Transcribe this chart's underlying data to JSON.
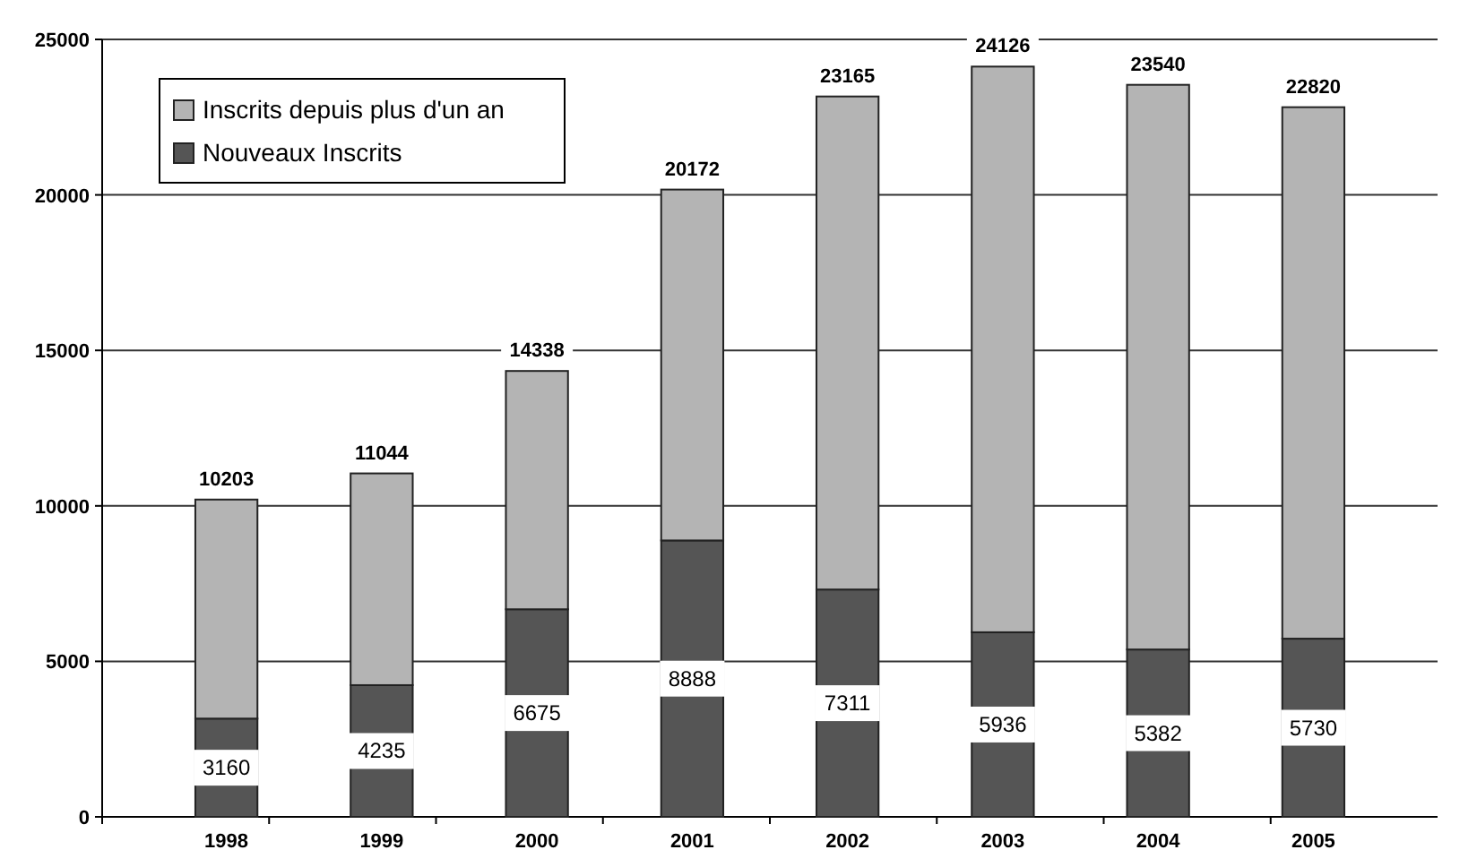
{
  "chart_data": {
    "type": "bar",
    "stacked": true,
    "categories": [
      "1998",
      "1999",
      "2000",
      "2001",
      "2002",
      "2003",
      "2004",
      "2005"
    ],
    "series": [
      {
        "name": "Nouveaux Inscrits",
        "color": "#555555",
        "values": [
          3160,
          4235,
          6675,
          8888,
          7311,
          5936,
          5382,
          5730
        ],
        "value_labels": [
          "3160",
          "4235",
          "6675",
          "8888",
          "7311",
          "5936",
          "5382",
          "5730"
        ]
      },
      {
        "name": "Inscrits depuis plus d'un an",
        "color": "#b4b4b4",
        "values": [
          7043,
          6809,
          7663,
          11284,
          15854,
          18190,
          18158,
          17090
        ]
      }
    ],
    "totals": [
      "10203",
      "11044",
      "14338",
      "20172",
      "23165",
      "24126",
      "23540",
      "22820"
    ],
    "ylim": [
      0,
      25000
    ],
    "yticks": [
      0,
      5000,
      10000,
      15000,
      20000,
      25000
    ],
    "grid": "y",
    "legend": "top left"
  }
}
